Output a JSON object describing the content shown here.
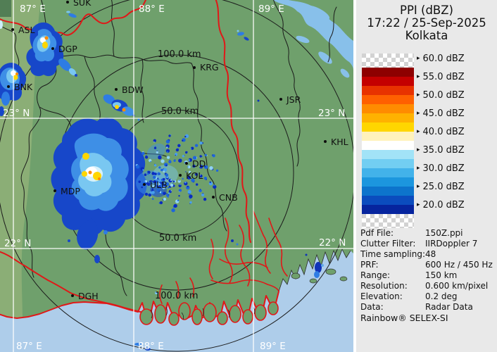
{
  "panel": {
    "title": "PPI (dBZ)",
    "datetime": "17:22 / 25-Sep-2025",
    "station": "Kolkata",
    "legend": {
      "arrow": "▸",
      "labels": [
        "60.0 dBZ",
        "55.0 dBZ",
        "50.0 dBZ",
        "45.0 dBZ",
        "40.0 dBZ",
        "35.0 dBZ",
        "30.0 dBZ",
        "25.0 dBZ",
        "20.0 dBZ"
      ],
      "band_colors": [
        "#8e0000",
        "#c40000",
        "#e83200",
        "#ff6000",
        "#ff8c00",
        "#ffb200",
        "#ffd600",
        "#fff2bc",
        "#ffffff",
        "#a2e3f7",
        "#72cef2",
        "#42b2ea",
        "#1c96de",
        "#0d74cc",
        "#0b4cbe",
        "#06249e"
      ]
    },
    "metadata": {
      "rows": [
        {
          "label": "Pdf File:",
          "value": "150Z.ppi"
        },
        {
          "label": "Clutter Filter:",
          "value": "IIRDoppler 7"
        },
        {
          "label": "Time sampling:",
          "value": "48"
        },
        {
          "label": "PRF:",
          "value": "600 Hz / 450 Hz"
        },
        {
          "label": "Range:",
          "value": "150 km"
        },
        {
          "label": "Resolution:",
          "value": "0.600 km/pixel"
        },
        {
          "label": "Elevation:",
          "value": "0.2 deg"
        },
        {
          "label": "Data:",
          "value": "Radar Data"
        }
      ],
      "footer": "Rainbow® SELEX-SI"
    }
  },
  "map": {
    "graticule_labels": {
      "top": [
        "87° E",
        "88° E",
        "89° E"
      ],
      "bottom": [
        "87° E",
        "88° E",
        "89° E"
      ],
      "left": [
        "23° N",
        "22° N"
      ],
      "right": [
        "23° N",
        "22° N"
      ]
    },
    "ring_labels": [
      "100.0 km",
      "50.0 km",
      "50.0 km",
      "100.0 km"
    ],
    "stations": [
      "SUK",
      "ASL",
      "DGP",
      "BNK",
      "BDW",
      "KRG",
      "JSR",
      "KHL",
      "DD",
      "KOL",
      "ULB",
      "CNB",
      "MDP",
      "DGH"
    ]
  },
  "colors": {
    "land": "#6fa06c",
    "sea": "#aecdea",
    "river": "#88c0ea",
    "border_red": "#e01818",
    "panel_bg": "#e9e9e9"
  }
}
